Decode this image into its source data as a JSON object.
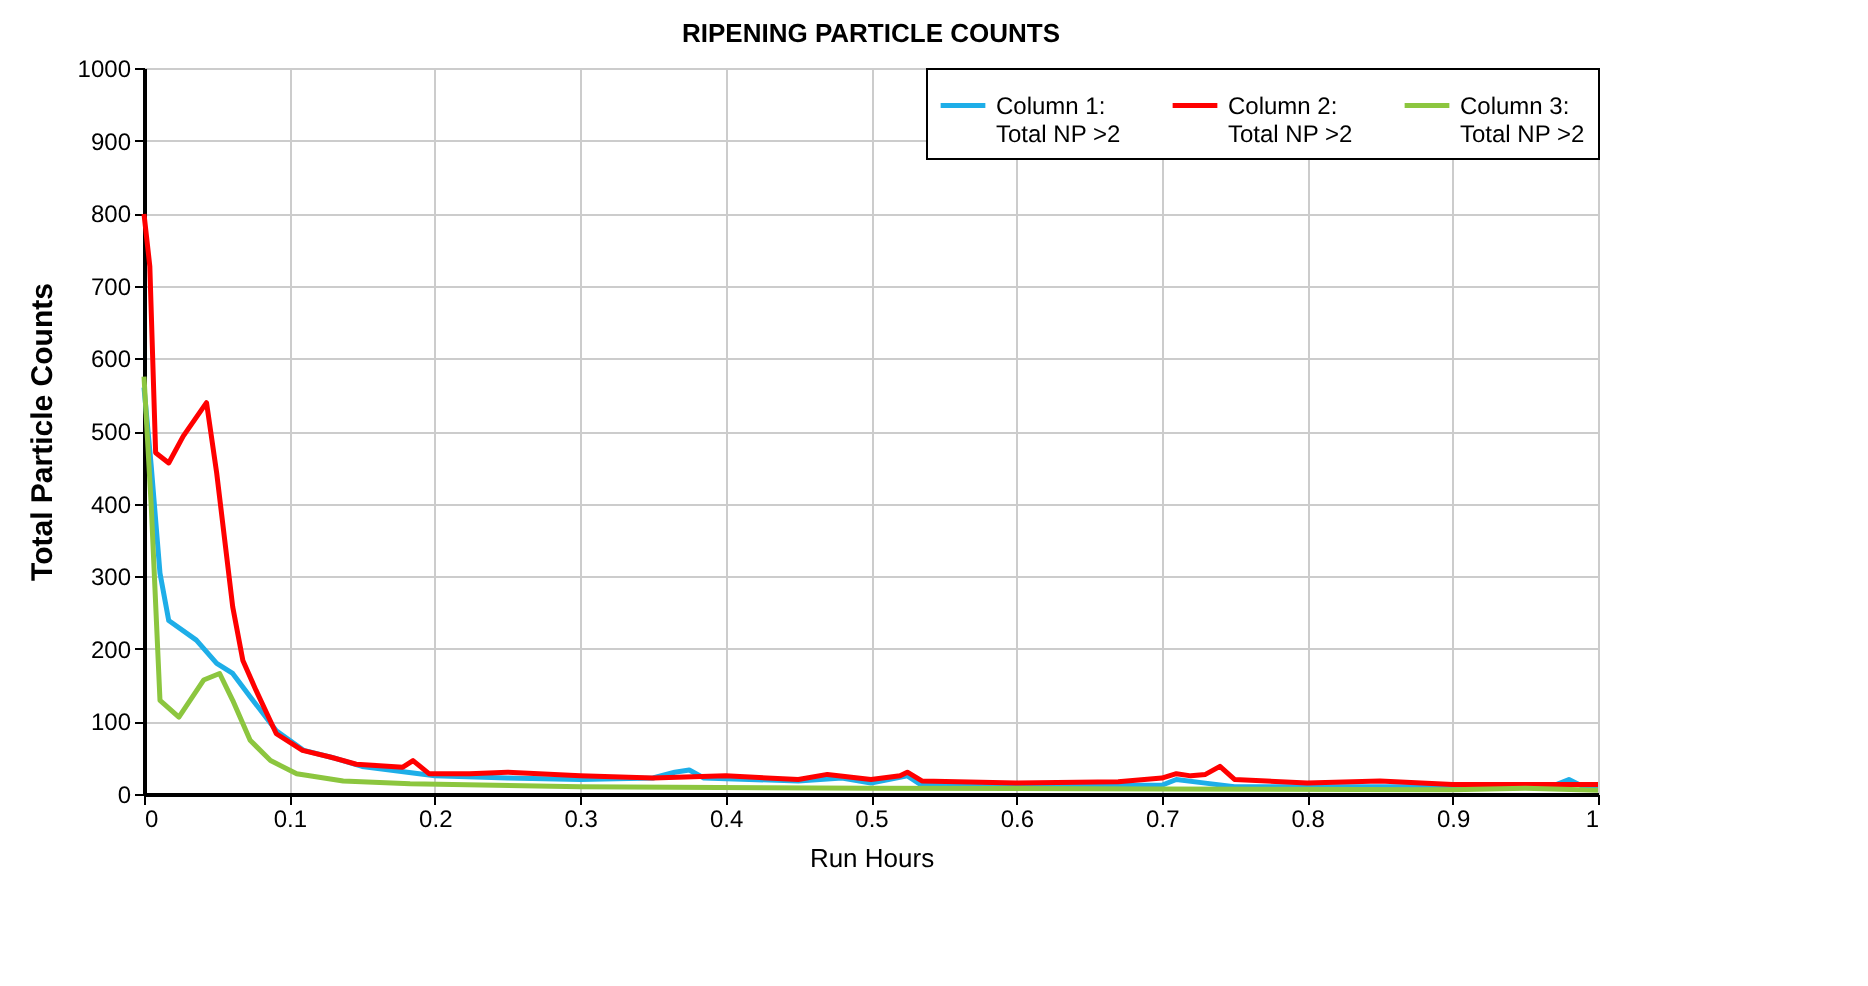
{
  "chart_data": {
    "type": "line",
    "title": "RIPENING PARTICLE COUNTS",
    "xlabel": "Run Hours",
    "ylabel": "Total Particle Counts",
    "xlim": [
      0,
      1
    ],
    "xticks": [
      0,
      0.1,
      0.2,
      0.3,
      0.4,
      0.5,
      0.6,
      0.7,
      0.8,
      0.9,
      1
    ],
    "ylim": [
      0,
      1000
    ],
    "yticks": [
      0,
      100,
      200,
      300,
      400,
      500,
      600,
      700,
      800,
      900,
      1000
    ],
    "grid": true,
    "legend": "top right",
    "marker": "none",
    "line_style": "solid",
    "series": [
      {
        "name": "Column 1:\nTotal NP >2",
        "color": "#1eaee8",
        "x": [
          0,
          0.005,
          0.011,
          0.017,
          0.036,
          0.05,
          0.061,
          0.073,
          0.091,
          0.11,
          0.13,
          0.15,
          0.2,
          0.25,
          0.3,
          0.35,
          0.365,
          0.375,
          0.385,
          0.45,
          0.48,
          0.5,
          0.525,
          0.535,
          0.6,
          0.7,
          0.71,
          0.73,
          0.75,
          0.8,
          0.9,
          0.97,
          0.98,
          0.99,
          1
        ],
        "values": [
          560,
          451,
          304,
          239,
          212,
          180,
          166,
          134,
          87,
          60,
          50,
          38,
          25,
          22,
          20,
          22,
          30,
          33,
          22,
          18,
          22,
          15,
          25,
          12,
          12,
          12,
          20,
          15,
          10,
          10,
          10,
          12,
          20,
          10,
          10
        ]
      },
      {
        "name": "Column 2:\nTotal NP >2",
        "color": "#ff0000",
        "x": [
          0,
          0.004,
          0.008,
          0.017,
          0.027,
          0.043,
          0.05,
          0.061,
          0.068,
          0.077,
          0.091,
          0.109,
          0.128,
          0.146,
          0.178,
          0.185,
          0.196,
          0.224,
          0.25,
          0.3,
          0.35,
          0.4,
          0.45,
          0.47,
          0.5,
          0.52,
          0.525,
          0.535,
          0.6,
          0.67,
          0.7,
          0.71,
          0.72,
          0.73,
          0.74,
          0.75,
          0.8,
          0.85,
          0.9,
          1
        ],
        "values": [
          799,
          727,
          470,
          456,
          493,
          539,
          442,
          258,
          184,
          143,
          83,
          60,
          51,
          41,
          37,
          46,
          28,
          28,
          30,
          25,
          22,
          25,
          20,
          27,
          20,
          25,
          30,
          18,
          15,
          17,
          22,
          28,
          25,
          27,
          38,
          20,
          15,
          18,
          13,
          13
        ]
      },
      {
        "name": "Column 3:\nTotal NP >2",
        "color": "#8cc63f",
        "x": [
          0,
          0.005,
          0.011,
          0.024,
          0.041,
          0.052,
          0.061,
          0.073,
          0.087,
          0.105,
          0.137,
          0.183,
          0.3,
          0.5,
          0.7,
          0.9,
          0.95,
          1
        ],
        "values": [
          575,
          396,
          129,
          106,
          157,
          166,
          129,
          74,
          46,
          28,
          18,
          14,
          10,
          8,
          7,
          6,
          8,
          5
        ]
      }
    ]
  }
}
